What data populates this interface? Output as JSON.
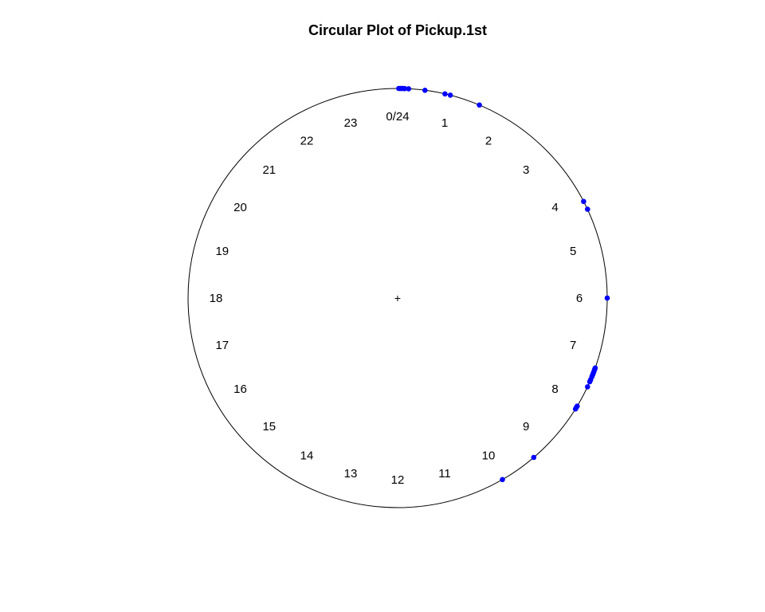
{
  "chart_data": {
    "type": "scatter",
    "title": "Circular Plot of Pickup.1st",
    "units": "hours",
    "zero_position": "top",
    "direction": "clockwise",
    "center_marker": "+",
    "tick_labels": [
      "0/24",
      "1",
      "2",
      "3",
      "4",
      "5",
      "6",
      "7",
      "8",
      "9",
      "10",
      "11",
      "12",
      "13",
      "14",
      "15",
      "16",
      "17",
      "18",
      "19",
      "20",
      "21",
      "22",
      "23"
    ],
    "point_color": "#0000ff",
    "circle_color": "#000000",
    "points": [
      0.02,
      0.05,
      0.07,
      0.1,
      0.13,
      0.2,
      0.5,
      0.87,
      0.97,
      1.53,
      4.17,
      4.33,
      6.0,
      7.3,
      7.33,
      7.37,
      7.4,
      7.43,
      7.47,
      7.53,
      7.57,
      7.67,
      8.07,
      8.1,
      8.13,
      9.3,
      10.0
    ]
  }
}
